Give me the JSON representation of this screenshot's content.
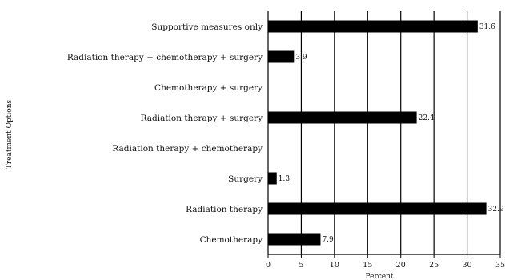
{
  "chart_data": {
    "type": "bar",
    "orientation": "horizontal",
    "categories": [
      "Supportive measures only",
      "Radiation therapy + chemotherapy + surgery",
      "Chemotherapy + surgery",
      "Radiation therapy + surgery",
      "Radiation therapy + chemotherapy",
      "Surgery",
      "Radiation therapy",
      "Chemotherapy"
    ],
    "values": [
      31.6,
      3.9,
      0,
      22.4,
      0,
      1.3,
      32.9,
      7.9
    ],
    "value_labels": [
      "31.6",
      "3.9",
      "",
      "22.4",
      "",
      "1.3",
      "32.9",
      "7.9"
    ],
    "xlabel": "Percent",
    "ylabel": "Treatment Options",
    "xlim": [
      0,
      35
    ],
    "xticks": [
      "0",
      "5",
      "10",
      "15",
      "20",
      "25",
      "30",
      "35"
    ],
    "grid": "vertical",
    "bar_color": "#000000"
  }
}
